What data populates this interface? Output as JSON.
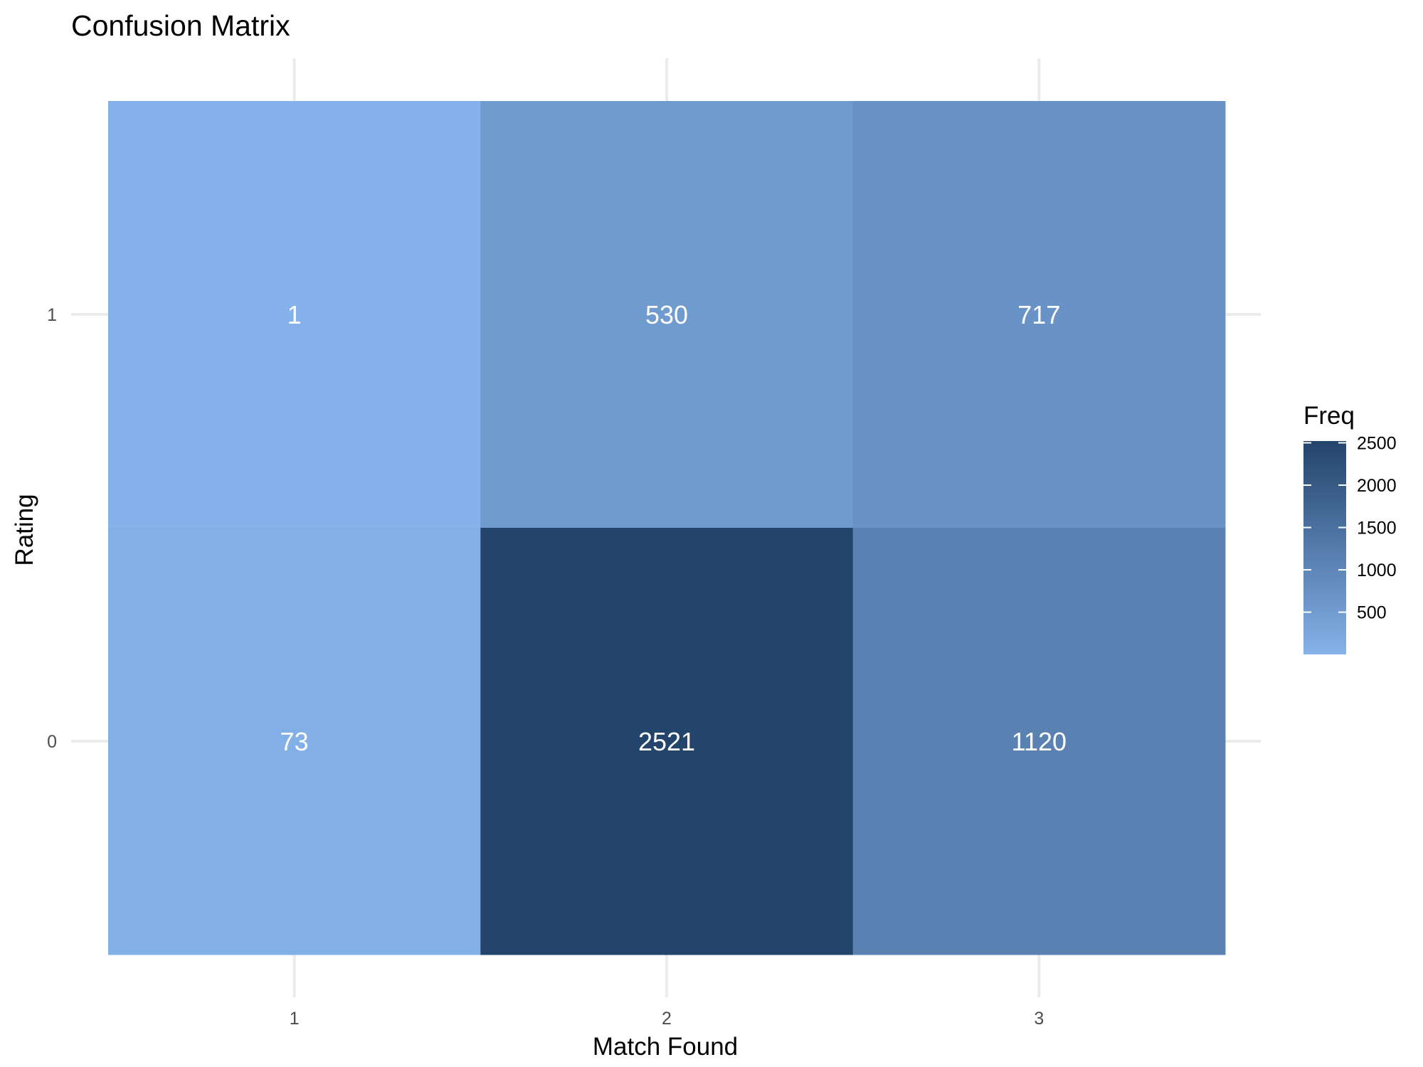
{
  "chart_data": {
    "type": "heatmap",
    "title": "Confusion Matrix",
    "xlabel": "Match Found",
    "ylabel": "Rating",
    "x_categories": [
      "1",
      "2",
      "3"
    ],
    "y_categories": [
      "0",
      "1"
    ],
    "cells": [
      {
        "x": "1",
        "y": "1",
        "value": 1
      },
      {
        "x": "2",
        "y": "1",
        "value": 530
      },
      {
        "x": "3",
        "y": "1",
        "value": 717
      },
      {
        "x": "1",
        "y": "0",
        "value": 73
      },
      {
        "x": "2",
        "y": "0",
        "value": 2521
      },
      {
        "x": "3",
        "y": "0",
        "value": 1120
      }
    ],
    "color_scale": {
      "low": "#85b2ea",
      "high": "#23446b",
      "domain": [
        1,
        2521
      ]
    },
    "legend": {
      "title": "Freq",
      "placement": "right",
      "ticks": [
        500,
        1000,
        1500,
        2000,
        2500
      ]
    },
    "grid": true
  }
}
